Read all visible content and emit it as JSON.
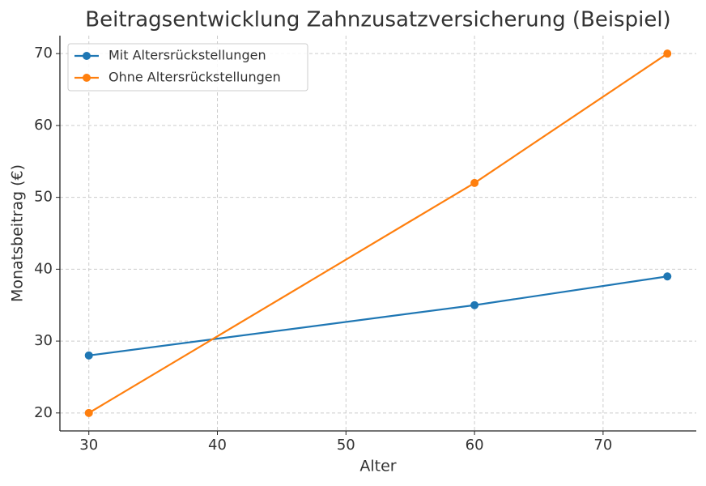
{
  "chart_data": {
    "type": "line",
    "title": "Beitragsentwicklung Zahnzusatzversicherung (Beispiel)",
    "x_label": "Alter",
    "y_label": "Monatsbeitrag (€)",
    "x": [
      30,
      60,
      75
    ],
    "series": [
      {
        "name": "Mit Altersrückstellungen",
        "color": "#1f77b4",
        "values": [
          28,
          35,
          39
        ]
      },
      {
        "name": "Ohne Altersrückstellungen",
        "color": "#ff7f0e",
        "values": [
          20,
          52,
          70
        ]
      }
    ],
    "xlim": [
      27.75,
      77.25
    ],
    "xticks": [
      30,
      40,
      50,
      60,
      70
    ],
    "ylim": [
      17.5,
      72.5
    ],
    "yticks": [
      20,
      30,
      40,
      50,
      60,
      70
    ],
    "grid": true,
    "legend": "upper-left"
  }
}
